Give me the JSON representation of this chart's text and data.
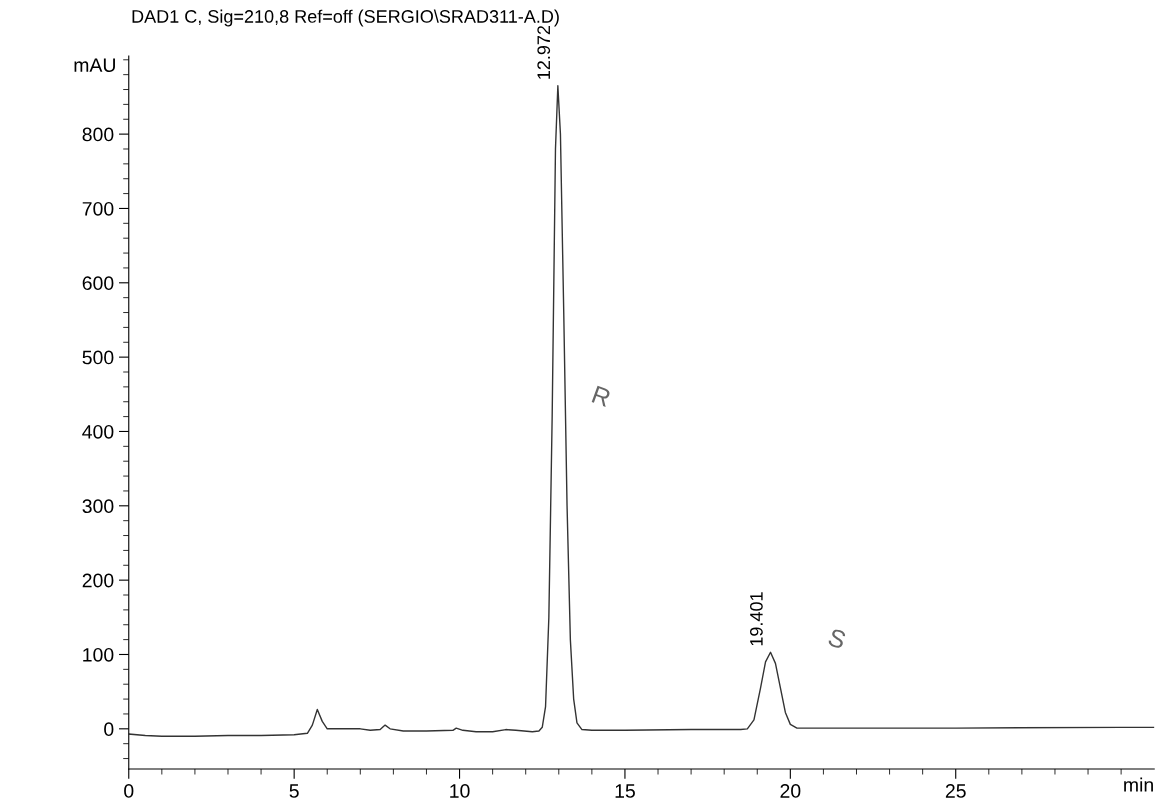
{
  "chart_data": {
    "type": "line",
    "title": "DAD1 C, Sig=210,8 Ref=off (SERGIO\\SRAD311-A.D)",
    "xlabel": "min",
    "ylabel": "mAU",
    "series": [
      {
        "color": "#333333",
        "x": [
          0,
          0.5,
          1,
          1.5,
          2,
          3,
          4,
          5,
          5.4,
          5.55,
          5.7,
          5.85,
          6.0,
          6.5,
          7.0,
          7.3,
          7.6,
          7.75,
          7.9,
          8.3,
          9,
          9.8,
          9.9,
          10.1,
          10.5,
          11,
          11.4,
          11.7,
          12.2,
          12.4,
          12.5,
          12.6,
          12.7,
          12.8,
          12.9,
          12.972,
          13.05,
          13.15,
          13.25,
          13.35,
          13.45,
          13.55,
          13.7,
          14,
          15,
          17,
          18.5,
          18.7,
          18.9,
          19.1,
          19.25,
          19.401,
          19.55,
          19.7,
          19.85,
          20.0,
          20.2,
          21,
          25,
          30,
          31
        ],
        "values": [
          -7,
          -9,
          -10,
          -10,
          -10,
          -9,
          -9,
          -8,
          -6,
          5,
          26,
          10,
          0,
          0,
          0,
          -2,
          -1,
          5,
          0,
          -3,
          -3,
          -2,
          1,
          -2,
          -4,
          -4,
          -1,
          -2,
          -4,
          -3,
          2,
          30,
          150,
          420,
          780,
          865,
          800,
          560,
          300,
          120,
          40,
          8,
          -1,
          -2,
          -2,
          -1,
          -1,
          0,
          12,
          55,
          90,
          103,
          88,
          55,
          22,
          6,
          1,
          1,
          1,
          2,
          2
        ]
      }
    ],
    "xlim": [
      0,
      31
    ],
    "ylim": [
      -54,
      905
    ],
    "xticks": [
      0,
      {
        "value": 1,
        "label": null
      },
      {
        "value": 2,
        "label": null
      },
      {
        "value": 3,
        "label": null
      },
      {
        "value": 4,
        "label": null
      },
      5,
      {
        "value": 6,
        "label": null
      },
      {
        "value": 7,
        "label": null
      },
      {
        "value": 8,
        "label": null
      },
      {
        "value": 9,
        "label": null
      },
      10,
      {
        "value": 11,
        "label": null
      },
      {
        "value": 12,
        "label": null
      },
      {
        "value": 13,
        "label": null
      },
      {
        "value": 14,
        "label": null
      },
      15,
      {
        "value": 16,
        "label": null
      },
      {
        "value": 17,
        "label": null
      },
      {
        "value": 18,
        "label": null
      },
      {
        "value": 19,
        "label": null
      },
      20,
      {
        "value": 21,
        "label": null
      },
      {
        "value": 22,
        "label": null
      },
      {
        "value": 23,
        "label": null
      },
      {
        "value": 24,
        "label": null
      },
      25,
      {
        "value": 26,
        "label": null
      },
      {
        "value": 27,
        "label": null
      },
      {
        "value": 28,
        "label": null
      },
      {
        "value": 29,
        "label": null
      },
      {
        "value": 30,
        "label": null
      }
    ],
    "yticks": [
      {
        "value": -40,
        "label": null
      },
      {
        "value": -20,
        "label": null
      },
      0,
      {
        "value": 20,
        "label": null
      },
      {
        "value": 40,
        "label": null
      },
      {
        "value": 60,
        "label": null
      },
      {
        "value": 80,
        "label": null
      },
      100,
      {
        "value": 120,
        "label": null
      },
      {
        "value": 140,
        "label": null
      },
      {
        "value": 160,
        "label": null
      },
      {
        "value": 180,
        "label": null
      },
      200,
      {
        "value": 220,
        "label": null
      },
      {
        "value": 240,
        "label": null
      },
      {
        "value": 260,
        "label": null
      },
      {
        "value": 280,
        "label": null
      },
      300,
      {
        "value": 320,
        "label": null
      },
      {
        "value": 340,
        "label": null
      },
      {
        "value": 360,
        "label": null
      },
      {
        "value": 380,
        "label": null
      },
      400,
      {
        "value": 420,
        "label": null
      },
      {
        "value": 440,
        "label": null
      },
      {
        "value": 460,
        "label": null
      },
      {
        "value": 480,
        "label": null
      },
      500,
      {
        "value": 520,
        "label": null
      },
      {
        "value": 540,
        "label": null
      },
      {
        "value": 560,
        "label": null
      },
      {
        "value": 580,
        "label": null
      },
      600,
      {
        "value": 620,
        "label": null
      },
      {
        "value": 640,
        "label": null
      },
      {
        "value": 660,
        "label": null
      },
      {
        "value": 680,
        "label": null
      },
      700,
      {
        "value": 720,
        "label": null
      },
      {
        "value": 740,
        "label": null
      },
      {
        "value": 760,
        "label": null
      },
      {
        "value": 780,
        "label": null
      },
      800,
      {
        "value": 820,
        "label": null
      },
      {
        "value": 840,
        "label": null
      },
      {
        "value": 860,
        "label": null
      },
      {
        "value": 880,
        "label": null
      },
      {
        "value": 900,
        "label": null
      }
    ],
    "grid": false,
    "legend": false,
    "marker": "none",
    "line_style": "solid",
    "annotations": [
      {
        "text": "12.972",
        "x": 12.972,
        "y": 865
      },
      {
        "text": "19.401",
        "x": 19.401,
        "y": 103
      },
      "R",
      "S"
    ]
  }
}
